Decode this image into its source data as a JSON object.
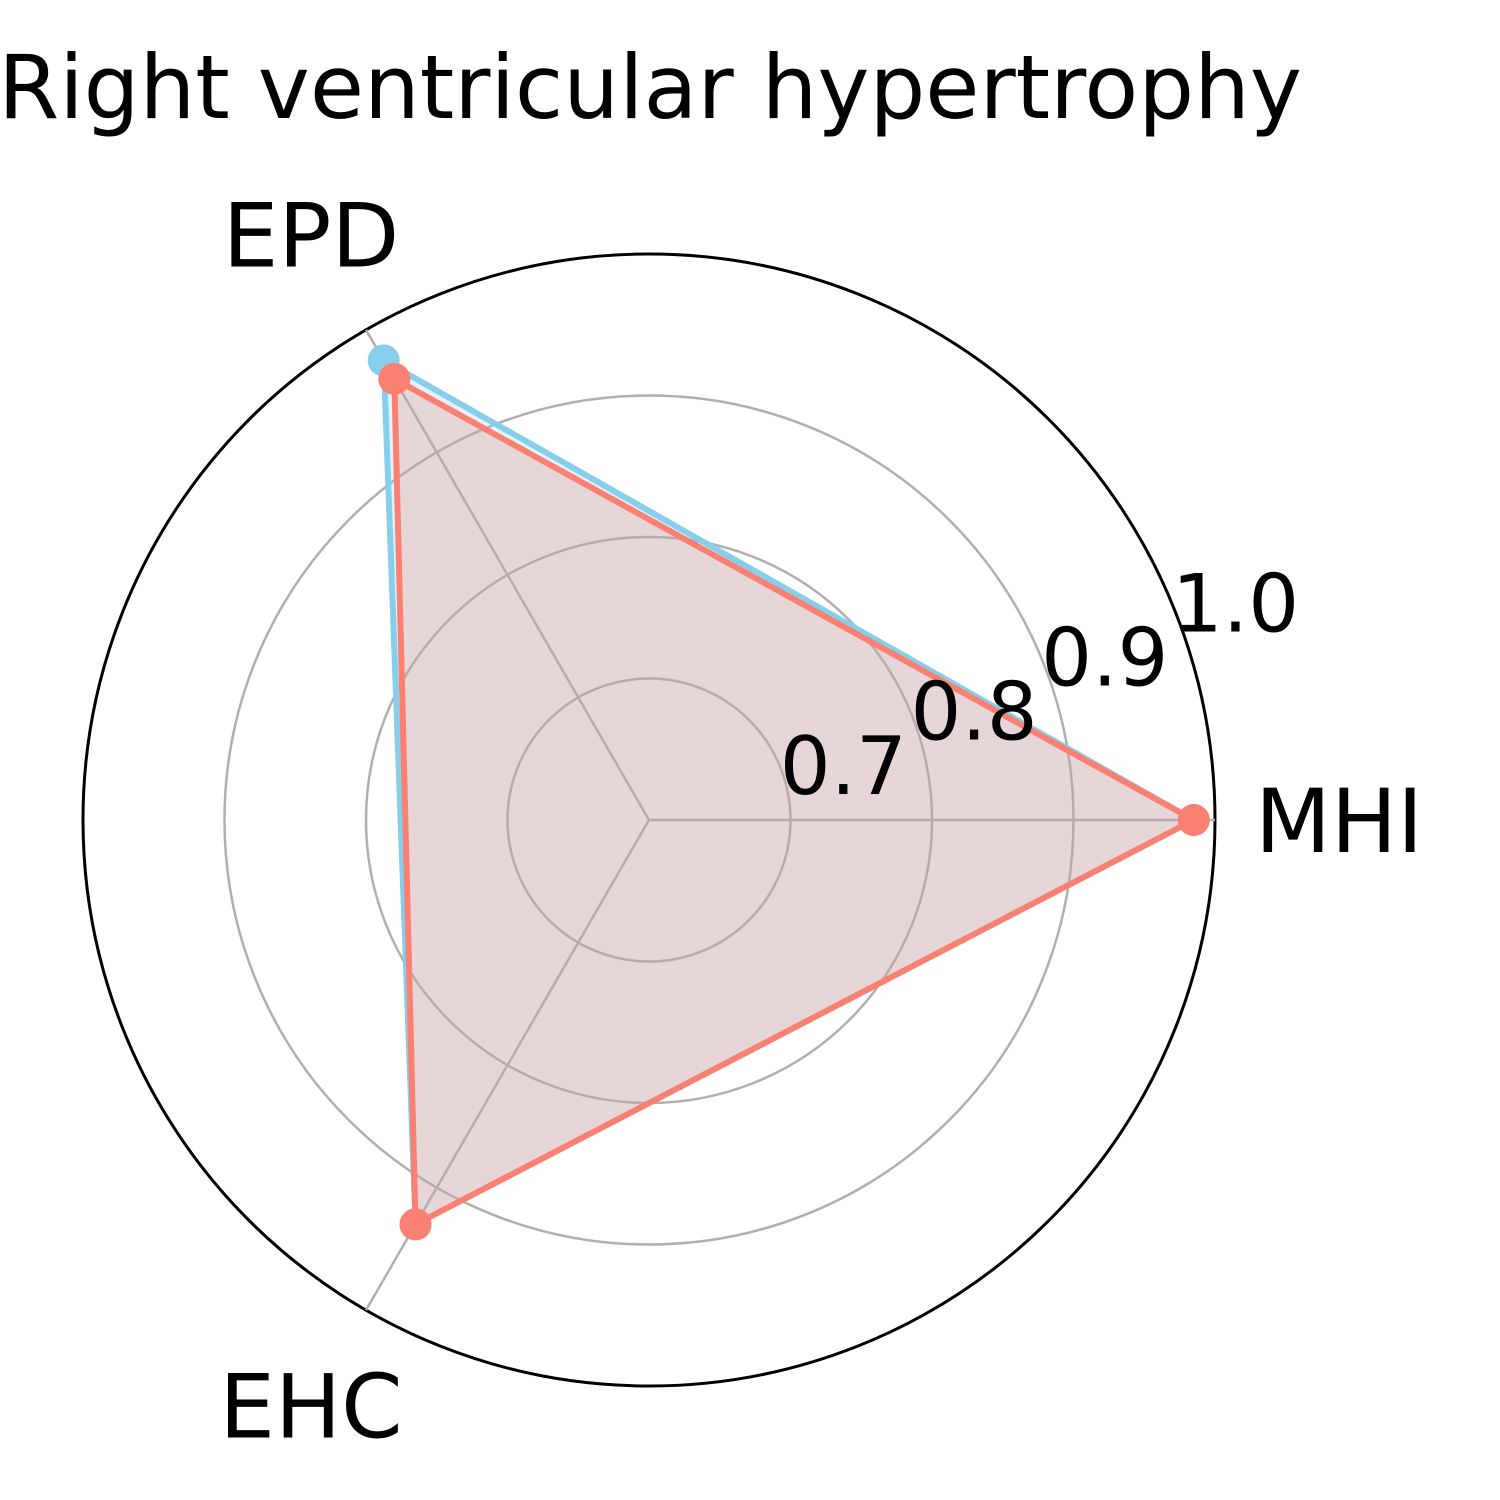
{
  "chart_data": {
    "type": "radar",
    "title": "Right ventricular hypertrophy",
    "axes": [
      "MHI",
      "EPD",
      "EHC"
    ],
    "rlim": [
      0.6,
      1.0
    ],
    "r_ticks": [
      0.7,
      0.8,
      0.9,
      1.0
    ],
    "r_tick_labels": [
      "0.7",
      "0.8",
      "0.9",
      "1.0"
    ],
    "grid": true,
    "series": [
      {
        "values": [
          0.985,
          0.975,
          0.93
        ],
        "color": "#87CEEB"
      },
      {
        "values": [
          0.985,
          0.96,
          0.93
        ],
        "color": "#FA8072"
      }
    ],
    "fill_alpha": 0.25
  }
}
